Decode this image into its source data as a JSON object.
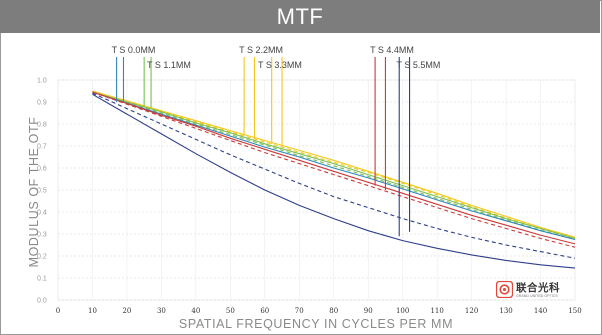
{
  "chart_data": {
    "type": "line",
    "title": "MTF",
    "xlabel": "SPATIAL FREQUENCY IN CYCLES PER MM",
    "ylabel": "MODULUS OF THE OTF",
    "xlim": [
      0,
      150
    ],
    "ylim": [
      0,
      1.0
    ],
    "x_ticks": [
      "0",
      "10",
      "20",
      "30",
      "40",
      "50",
      "60",
      "70",
      "80",
      "90",
      "100",
      "110",
      "120",
      "130",
      "140",
      "150"
    ],
    "y_ticks": [
      "0.0",
      "0.1",
      "0.2",
      "0.3",
      "0.4",
      "0.5",
      "0.6",
      "0.7",
      "0.8",
      "0.9",
      "1.0"
    ],
    "grid": true,
    "field_labels": [
      {
        "text": "T S 0.0MM",
        "color": "#2f86b8"
      },
      {
        "text": "T S 1.1MM",
        "color": "#7cbf52"
      },
      {
        "text": "T S 2.2MM",
        "color": "#f3c71a"
      },
      {
        "text": "T S 3.3MM",
        "color": "#f3c71a"
      },
      {
        "text": "T S 4.4MM",
        "color": "#cc3a3a"
      },
      {
        "text": "T S 5.5MM",
        "color": "#2e3f8a"
      }
    ],
    "series": [
      {
        "color": "#f3c71a",
        "dash": false,
        "x": [
          10,
          20,
          30,
          40,
          50,
          60,
          70,
          80,
          90,
          100,
          110,
          120,
          130,
          140,
          150
        ],
        "values": [
          0.95,
          0.905,
          0.86,
          0.815,
          0.77,
          0.725,
          0.68,
          0.635,
          0.585,
          0.535,
          0.485,
          0.43,
          0.38,
          0.33,
          0.285
        ]
      },
      {
        "color": "#f3c71a",
        "dash": true,
        "x": [
          10,
          20,
          30,
          40,
          50,
          60,
          70,
          80,
          90,
          100,
          110,
          120,
          130,
          140,
          150
        ],
        "values": [
          0.95,
          0.903,
          0.856,
          0.81,
          0.764,
          0.718,
          0.672,
          0.626,
          0.58,
          0.53,
          0.478,
          0.424,
          0.373,
          0.325,
          0.28
        ]
      },
      {
        "color": "#7cbf52",
        "dash": false,
        "x": [
          10,
          20,
          30,
          40,
          50,
          60,
          70,
          80,
          90,
          100,
          110,
          120,
          130,
          140,
          150
        ],
        "values": [
          0.945,
          0.9,
          0.855,
          0.805,
          0.76,
          0.71,
          0.665,
          0.62,
          0.57,
          0.52,
          0.47,
          0.42,
          0.37,
          0.325,
          0.28
        ]
      },
      {
        "color": "#7cbf52",
        "dash": true,
        "x": [
          10,
          20,
          30,
          40,
          50,
          60,
          70,
          80,
          90,
          100,
          110,
          120,
          130,
          140,
          150
        ],
        "values": [
          0.945,
          0.897,
          0.85,
          0.8,
          0.752,
          0.704,
          0.656,
          0.61,
          0.562,
          0.512,
          0.462,
          0.412,
          0.364,
          0.318,
          0.275
        ]
      },
      {
        "color": "#2f86b8",
        "dash": false,
        "x": [
          10,
          20,
          30,
          40,
          50,
          60,
          70,
          80,
          90,
          100,
          110,
          120,
          130,
          140,
          150
        ],
        "values": [
          0.945,
          0.895,
          0.845,
          0.795,
          0.745,
          0.695,
          0.65,
          0.6,
          0.555,
          0.505,
          0.455,
          0.405,
          0.36,
          0.315,
          0.275
        ]
      },
      {
        "color": "#cc3a3a",
        "dash": false,
        "x": [
          10,
          20,
          30,
          40,
          50,
          60,
          70,
          80,
          90,
          100,
          110,
          120,
          130,
          140,
          150
        ],
        "values": [
          0.945,
          0.893,
          0.84,
          0.79,
          0.735,
          0.685,
          0.635,
          0.585,
          0.535,
          0.485,
          0.435,
          0.385,
          0.34,
          0.295,
          0.255
        ]
      },
      {
        "color": "#cc3a3a",
        "dash": true,
        "x": [
          10,
          20,
          30,
          40,
          50,
          60,
          70,
          80,
          90,
          100,
          110,
          120,
          130,
          140,
          150
        ],
        "values": [
          0.945,
          0.89,
          0.835,
          0.78,
          0.725,
          0.67,
          0.62,
          0.57,
          0.52,
          0.47,
          0.42,
          0.37,
          0.325,
          0.28,
          0.24
        ]
      },
      {
        "color": "#2e3f8a",
        "dash": true,
        "x": [
          10,
          20,
          30,
          40,
          50,
          60,
          70,
          80,
          90,
          100,
          110,
          120,
          130,
          140,
          150
        ],
        "values": [
          0.94,
          0.87,
          0.8,
          0.73,
          0.66,
          0.595,
          0.53,
          0.47,
          0.42,
          0.37,
          0.325,
          0.285,
          0.25,
          0.22,
          0.19
        ]
      },
      {
        "color": "#2e3f8a",
        "dash": false,
        "x": [
          10,
          20,
          30,
          40,
          50,
          60,
          70,
          80,
          90,
          100,
          110,
          120,
          130,
          140,
          150
        ],
        "values": [
          0.935,
          0.845,
          0.755,
          0.665,
          0.58,
          0.5,
          0.43,
          0.37,
          0.315,
          0.27,
          0.235,
          0.205,
          0.18,
          0.16,
          0.145
        ]
      }
    ],
    "markers": [
      {
        "x": 17,
        "y_top": 0.895,
        "y_bottom": 0.9,
        "color": "#2f86b8",
        "label": 0,
        "label_x": 17
      },
      {
        "x": 19,
        "y_top": 0.895,
        "y_bottom": 0.9,
        "color": "#2f86b8"
      },
      {
        "x": 25,
        "y_top": 0.895,
        "y_bottom": 0.88,
        "color": "#7cbf52"
      },
      {
        "x": 27,
        "y_top": 0.895,
        "y_bottom": 0.875,
        "color": "#7cbf52",
        "label": 1,
        "label_x": 27
      },
      {
        "x": 54,
        "y_top": 0.895,
        "y_bottom": 0.75,
        "color": "#f3c71a",
        "label": 2,
        "label_x": 54
      },
      {
        "x": 57,
        "y_top": 0.895,
        "y_bottom": 0.735,
        "color": "#f3c71a"
      },
      {
        "x": 62,
        "y_top": 0.895,
        "y_bottom": 0.71,
        "color": "#f3c71a"
      },
      {
        "x": 65,
        "y_top": 0.895,
        "y_bottom": 0.695,
        "color": "#f3c71a",
        "label": 3,
        "label_x": 65
      },
      {
        "x": 92,
        "y_top": 0.895,
        "y_bottom": 0.52,
        "color": "#cc3a3a",
        "label": 4,
        "label_x": 92
      },
      {
        "x": 95,
        "y_top": 0.895,
        "y_bottom": 0.5,
        "color": "#cc3a3a"
      },
      {
        "x": 99,
        "y_top": 0.895,
        "y_bottom": 0.29,
        "color": "#2e3f8a"
      },
      {
        "x": 102,
        "y_top": 0.895,
        "y_bottom": 0.31,
        "color": "#2e3f8a",
        "label": 5,
        "label_x": 102
      }
    ]
  },
  "logo": {
    "text": "联合光科",
    "subtext": "GRAND UNITED OPTICS",
    "color": "#e2483a"
  }
}
